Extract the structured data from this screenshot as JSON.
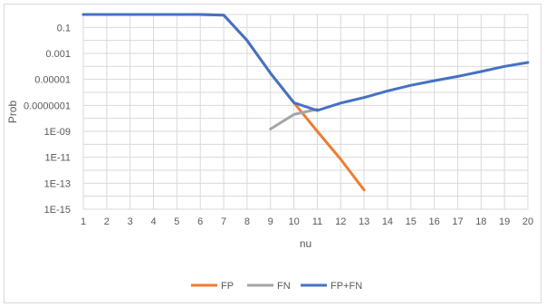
{
  "chart_data": {
    "type": "line",
    "title": "",
    "xlabel": "nu",
    "ylabel": "Prob",
    "y_scale": "log",
    "ylim": [
      1e-15,
      1
    ],
    "y_tick_labels": [
      "1E-15",
      "1E-13",
      "1E-11",
      "1E-09",
      "0.0000001",
      "0.00001",
      "0.001",
      "0.1"
    ],
    "y_tick_values": [
      1e-15,
      1e-13,
      1e-11,
      1e-09,
      1e-07,
      1e-05,
      0.001,
      0.1
    ],
    "categories": [
      1,
      2,
      3,
      4,
      5,
      6,
      7,
      8,
      9,
      10,
      11,
      12,
      13,
      14,
      15,
      16,
      17,
      18,
      19,
      20
    ],
    "grid": true,
    "legend_position": "bottom",
    "series": [
      {
        "name": "FP",
        "color": "#ED7D31",
        "x": [
          1,
          2,
          3,
          4,
          5,
          6,
          7,
          8,
          9,
          10,
          11,
          12,
          13
        ],
        "values": [
          1,
          1,
          1,
          1,
          1,
          1,
          0.9,
          0.01,
          3e-05,
          1.6e-07,
          1e-09,
          7e-12,
          3e-14
        ]
      },
      {
        "name": "FN",
        "color": "#A5A5A5",
        "x": [
          9,
          10,
          11
        ],
        "values": [
          1.5e-09,
          2e-08,
          5e-08
        ]
      },
      {
        "name": "FP+FN",
        "color": "#4472C4",
        "x": [
          1,
          2,
          3,
          4,
          5,
          6,
          7,
          8,
          9,
          10,
          11,
          12,
          13,
          14,
          15,
          16,
          17,
          18,
          19,
          20
        ],
        "values": [
          1,
          1,
          1,
          1,
          1,
          1,
          0.9,
          0.01,
          3e-05,
          1.6e-07,
          4e-08,
          1.5e-07,
          4e-07,
          1.3e-06,
          3.5e-06,
          8e-06,
          1.7e-05,
          4e-05,
          0.0001,
          0.0002
        ]
      }
    ]
  }
}
